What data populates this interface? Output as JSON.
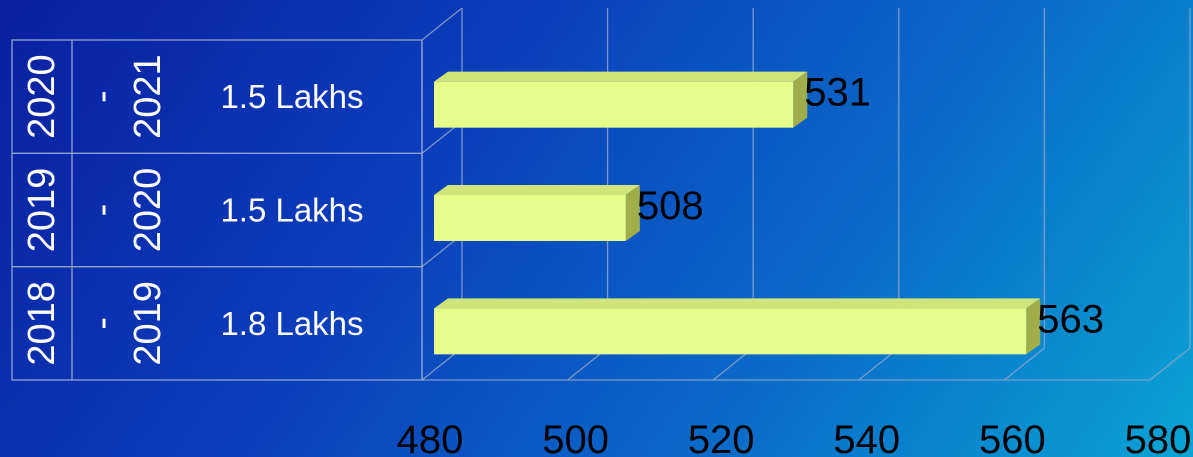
{
  "chart_data": {
    "type": "bar",
    "orientation": "horizontal",
    "rows": [
      {
        "year_from": "2020",
        "separator": "-",
        "year_to": "2021",
        "label": "1.5 Lakhs",
        "value": 531
      },
      {
        "year_from": "2019",
        "separator": "-",
        "year_to": "2020",
        "label": "1.5 Lakhs",
        "value": 508
      },
      {
        "year_from": "2018",
        "separator": "-",
        "year_to": "2019",
        "label": "1.8 Lakhs",
        "value": 563
      }
    ],
    "xlim": [
      480,
      580
    ],
    "x_ticks": [
      "480",
      "500",
      "520",
      "540",
      "560",
      "580"
    ],
    "grid": true,
    "bar_color": "#e6ff8c",
    "bar_side_color": "#9fae4b"
  }
}
